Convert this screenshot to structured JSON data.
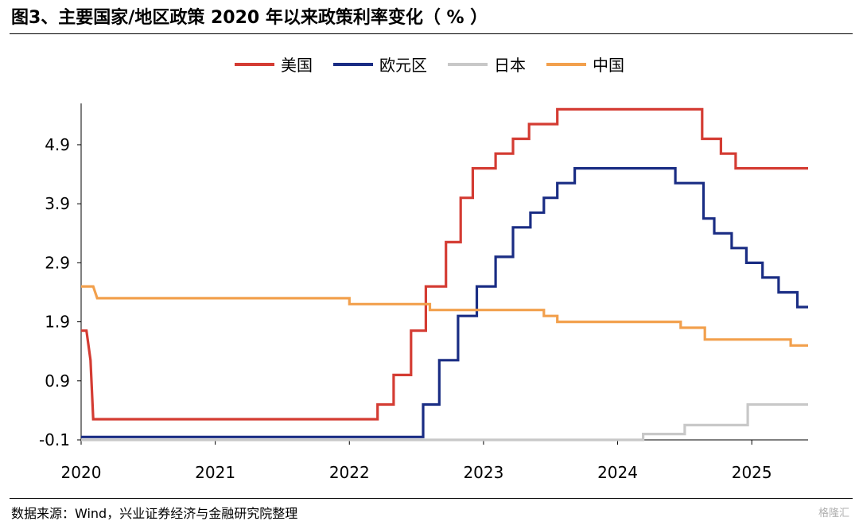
{
  "title": "图3、主要国家/地区政策 2020 年以来政策利率变化（ % ）",
  "source": "数据来源：Wind，兴业证券经济与金融研究院整理",
  "watermark": "格隆汇",
  "chart_data": {
    "type": "line",
    "step": true,
    "title": "图3、主要国家/地区政策 2020 年以来政策利率变化（ % ）",
    "xlabel": "",
    "ylabel": "",
    "xlim": [
      2020.0,
      2025.42
    ],
    "ylim": [
      -0.1,
      5.6
    ],
    "yticks": [
      -0.1,
      0.9,
      1.9,
      2.9,
      3.9,
      4.9
    ],
    "ytick_labels": [
      "-0.1",
      "0.9",
      "1.9",
      "2.9",
      "3.9",
      "4.9"
    ],
    "xticks": [
      2020,
      2021,
      2022,
      2023,
      2024,
      2025
    ],
    "xtick_labels": [
      "2020",
      "2021",
      "2022",
      "2023",
      "2024",
      "2025"
    ],
    "grid": false,
    "legend_position": "top-center",
    "series": [
      {
        "name": "美国",
        "color": "#d43c33",
        "points": [
          [
            2020.0,
            1.75
          ],
          [
            2020.04,
            1.75
          ],
          [
            2020.07,
            1.25
          ],
          [
            2020.09,
            0.25
          ],
          [
            2022.21,
            0.25
          ],
          [
            2022.21,
            0.5
          ],
          [
            2022.33,
            0.5
          ],
          [
            2022.33,
            1.0
          ],
          [
            2022.46,
            1.0
          ],
          [
            2022.46,
            1.75
          ],
          [
            2022.57,
            1.75
          ],
          [
            2022.57,
            2.5
          ],
          [
            2022.72,
            2.5
          ],
          [
            2022.72,
            3.25
          ],
          [
            2022.83,
            3.25
          ],
          [
            2022.83,
            4.0
          ],
          [
            2022.92,
            4.0
          ],
          [
            2022.92,
            4.5
          ],
          [
            2023.09,
            4.5
          ],
          [
            2023.09,
            4.75
          ],
          [
            2023.22,
            4.75
          ],
          [
            2023.22,
            5.0
          ],
          [
            2023.34,
            5.0
          ],
          [
            2023.34,
            5.25
          ],
          [
            2023.55,
            5.25
          ],
          [
            2023.55,
            5.5
          ],
          [
            2024.63,
            5.5
          ],
          [
            2024.63,
            5.0
          ],
          [
            2024.77,
            5.0
          ],
          [
            2024.77,
            4.75
          ],
          [
            2024.88,
            4.75
          ],
          [
            2024.88,
            4.5
          ],
          [
            2025.42,
            4.5
          ]
        ]
      },
      {
        "name": "欧元区",
        "color": "#1a2d84",
        "points": [
          [
            2020.0,
            -0.05
          ],
          [
            2022.55,
            -0.05
          ],
          [
            2022.55,
            0.5
          ],
          [
            2022.67,
            0.5
          ],
          [
            2022.67,
            1.25
          ],
          [
            2022.81,
            1.25
          ],
          [
            2022.81,
            2.0
          ],
          [
            2022.95,
            2.0
          ],
          [
            2022.95,
            2.5
          ],
          [
            2023.09,
            2.5
          ],
          [
            2023.09,
            3.0
          ],
          [
            2023.22,
            3.0
          ],
          [
            2023.22,
            3.5
          ],
          [
            2023.35,
            3.5
          ],
          [
            2023.35,
            3.75
          ],
          [
            2023.45,
            3.75
          ],
          [
            2023.45,
            4.0
          ],
          [
            2023.55,
            4.0
          ],
          [
            2023.55,
            4.25
          ],
          [
            2023.68,
            4.25
          ],
          [
            2023.68,
            4.5
          ],
          [
            2024.43,
            4.5
          ],
          [
            2024.43,
            4.25
          ],
          [
            2024.64,
            4.25
          ],
          [
            2024.64,
            3.65
          ],
          [
            2024.72,
            3.65
          ],
          [
            2024.72,
            3.4
          ],
          [
            2024.85,
            3.4
          ],
          [
            2024.85,
            3.15
          ],
          [
            2024.96,
            3.15
          ],
          [
            2024.96,
            2.9
          ],
          [
            2025.08,
            2.9
          ],
          [
            2025.08,
            2.65
          ],
          [
            2025.2,
            2.65
          ],
          [
            2025.2,
            2.4
          ],
          [
            2025.34,
            2.4
          ],
          [
            2025.34,
            2.15
          ],
          [
            2025.42,
            2.15
          ]
        ]
      },
      {
        "name": "日本",
        "color": "#c8c8c8",
        "points": [
          [
            2020.0,
            -0.1
          ],
          [
            2024.19,
            -0.1
          ],
          [
            2024.19,
            0.0
          ],
          [
            2024.5,
            0.0
          ],
          [
            2024.5,
            0.15
          ],
          [
            2024.97,
            0.15
          ],
          [
            2024.97,
            0.5
          ],
          [
            2025.42,
            0.5
          ]
        ]
      },
      {
        "name": "中国",
        "color": "#f2a04d",
        "points": [
          [
            2020.0,
            2.5
          ],
          [
            2020.09,
            2.5
          ],
          [
            2020.12,
            2.3
          ],
          [
            2022.0,
            2.3
          ],
          [
            2022.0,
            2.2
          ],
          [
            2022.6,
            2.2
          ],
          [
            2022.6,
            2.1
          ],
          [
            2023.45,
            2.1
          ],
          [
            2023.45,
            2.0
          ],
          [
            2023.55,
            2.0
          ],
          [
            2023.55,
            1.9
          ],
          [
            2024.47,
            1.9
          ],
          [
            2024.47,
            1.8
          ],
          [
            2024.65,
            1.8
          ],
          [
            2024.65,
            1.6
          ],
          [
            2025.29,
            1.6
          ],
          [
            2025.29,
            1.5
          ],
          [
            2025.42,
            1.5
          ]
        ]
      }
    ]
  }
}
